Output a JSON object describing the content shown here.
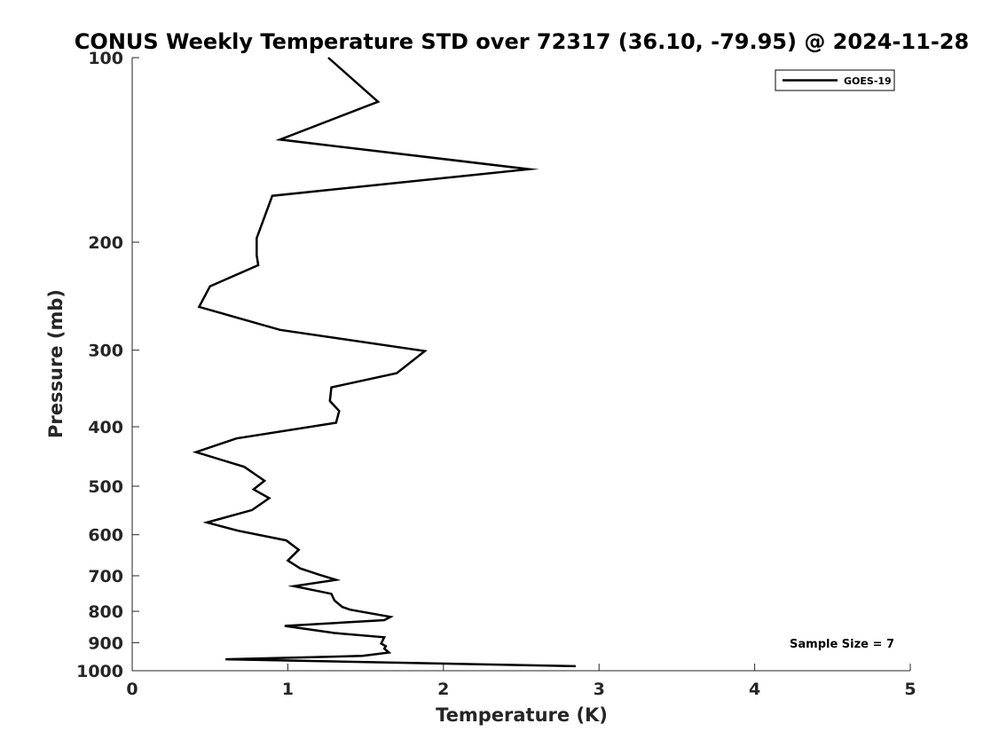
{
  "chart_data": {
    "type": "line",
    "title": "CONUS Weekly Temperature STD over 72317 (36.10, -79.95) @ 2024-11-28",
    "xlabel": "Temperature (K)",
    "ylabel": "Pressure (mb)",
    "xlim": [
      0,
      5
    ],
    "ylim": [
      100,
      1000
    ],
    "yscale": "log",
    "y_reversed": true,
    "xticks": [
      0,
      1,
      2,
      3,
      4,
      5
    ],
    "yticks": [
      100,
      200,
      300,
      400,
      500,
      600,
      700,
      800,
      900,
      1000
    ],
    "grid": false,
    "legend": {
      "placement": "top-right",
      "entries": [
        "GOES-19"
      ]
    },
    "annotation": "Sample Size = 7",
    "series": [
      {
        "name": "GOES-19",
        "color": "#000000",
        "points": [
          [
            1.26,
            100
          ],
          [
            1.58,
            118
          ],
          [
            0.95,
            136
          ],
          [
            2.55,
            152
          ],
          [
            0.9,
            168
          ],
          [
            0.8,
            197
          ],
          [
            0.8,
            206
          ],
          [
            0.8,
            210
          ],
          [
            0.81,
            218
          ],
          [
            0.5,
            236
          ],
          [
            0.43,
            255
          ],
          [
            0.95,
            278
          ],
          [
            1.88,
            301
          ],
          [
            1.7,
            327
          ],
          [
            1.28,
            345
          ],
          [
            1.27,
            363
          ],
          [
            1.33,
            377
          ],
          [
            1.31,
            394
          ],
          [
            0.67,
            418
          ],
          [
            0.41,
            440
          ],
          [
            0.72,
            465
          ],
          [
            0.85,
            490
          ],
          [
            0.78,
            506
          ],
          [
            0.88,
            523
          ],
          [
            0.77,
            547
          ],
          [
            0.48,
            573
          ],
          [
            0.68,
            591
          ],
          [
            0.99,
            613
          ],
          [
            1.07,
            635
          ],
          [
            1.0,
            661
          ],
          [
            1.08,
            681
          ],
          [
            1.2,
            697
          ],
          [
            1.31,
            711
          ],
          [
            1.04,
            728
          ],
          [
            1.28,
            749
          ],
          [
            1.3,
            768
          ],
          [
            1.35,
            787
          ],
          [
            1.4,
            795
          ],
          [
            1.66,
            817
          ],
          [
            1.62,
            827
          ],
          [
            0.98,
            845
          ],
          [
            1.3,
            868
          ],
          [
            1.62,
            882
          ],
          [
            1.6,
            903
          ],
          [
            1.63,
            912
          ],
          [
            1.62,
            920
          ],
          [
            1.65,
            934
          ],
          [
            1.48,
            946
          ],
          [
            0.6,
            958
          ],
          [
            2.85,
            983
          ]
        ]
      }
    ]
  }
}
